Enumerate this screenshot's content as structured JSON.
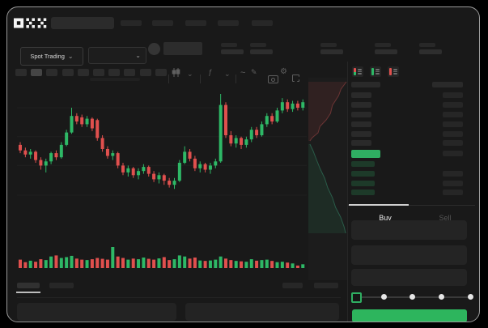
{
  "app": {
    "name": "OKX",
    "logo_label": "OKX"
  },
  "colors": {
    "background": "#000000",
    "surface": "#191919",
    "chart_bg": "#141414",
    "up_green": "#2eb866",
    "down_red": "#e0504e",
    "last_price_green": "#2fae62",
    "buy_button_green": "#2db55d",
    "placeholder": "#272727"
  },
  "icons": {
    "chevron_down": "⌄",
    "indicator_fx": "ƒ",
    "line_style_wave": "~",
    "draw_pencil": "✎",
    "settings_gear": "⚙"
  },
  "header": {
    "nav_placeholder_count": 5,
    "search_value": ""
  },
  "market_bar": {
    "pair_selector_label": "Spot Trading",
    "stat_group_count": 5
  },
  "chart_toolbar": {
    "timeframe_count": 10,
    "active_timeframe_index": 1
  },
  "chart_data": {
    "type": "candlestick+volume+depth",
    "title": "",
    "price_scale": [
      0,
      100
    ],
    "gridlines_price": [
      80,
      59,
      38,
      16.5
    ],
    "up_color": "#2eb866",
    "down_color": "#e0504e",
    "candles_ohlc": [
      [
        53,
        55,
        47,
        49
      ],
      [
        49,
        51,
        44,
        46
      ],
      [
        46,
        50,
        43,
        48
      ],
      [
        48,
        49,
        40,
        42
      ],
      [
        42,
        44,
        35,
        38
      ],
      [
        38,
        43,
        33,
        41
      ],
      [
        41,
        48,
        39,
        47
      ],
      [
        47,
        49,
        42,
        44
      ],
      [
        44,
        55,
        43,
        53
      ],
      [
        53,
        64,
        52,
        62
      ],
      [
        62,
        80,
        61,
        74
      ],
      [
        74,
        76,
        68,
        70
      ],
      [
        73,
        75,
        66,
        68
      ],
      [
        68,
        74,
        66,
        72
      ],
      [
        72,
        73,
        63,
        65
      ],
      [
        71,
        72,
        56,
        58
      ],
      [
        58,
        60,
        48,
        50
      ],
      [
        50,
        52,
        43,
        45
      ],
      [
        45,
        49,
        42,
        47
      ],
      [
        47,
        48,
        36,
        38
      ],
      [
        38,
        40,
        31,
        33
      ],
      [
        33,
        38,
        30,
        36
      ],
      [
        36,
        37,
        29,
        31
      ],
      [
        31,
        36,
        28,
        34
      ],
      [
        34,
        39,
        32,
        37
      ],
      [
        37,
        38,
        30,
        32
      ],
      [
        32,
        34,
        26,
        28
      ],
      [
        28,
        33,
        25,
        31
      ],
      [
        31,
        32,
        24,
        27
      ],
      [
        27,
        29,
        22,
        24
      ],
      [
        24,
        29,
        21,
        27
      ],
      [
        27,
        42,
        26,
        40
      ],
      [
        40,
        52,
        39,
        48
      ],
      [
        48,
        50,
        41,
        43
      ],
      [
        43,
        45,
        34,
        36
      ],
      [
        36,
        41,
        33,
        39
      ],
      [
        39,
        40,
        33,
        35
      ],
      [
        35,
        40,
        32,
        38
      ],
      [
        38,
        43,
        36,
        41
      ],
      [
        41,
        90,
        40,
        82
      ],
      [
        82,
        84,
        58,
        60
      ],
      [
        60,
        63,
        52,
        54
      ],
      [
        54,
        60,
        51,
        58
      ],
      [
        58,
        59,
        50,
        53
      ],
      [
        53,
        59,
        51,
        57
      ],
      [
        57,
        66,
        55,
        64
      ],
      [
        64,
        66,
        58,
        60
      ],
      [
        60,
        70,
        59,
        68
      ],
      [
        68,
        76,
        66,
        74
      ],
      [
        74,
        76,
        68,
        70
      ],
      [
        70,
        80,
        69,
        78
      ],
      [
        78,
        87,
        76,
        84
      ],
      [
        84,
        86,
        77,
        79
      ],
      [
        79,
        85,
        77,
        83
      ],
      [
        83,
        85,
        78,
        80
      ],
      [
        80,
        86,
        78,
        84
      ]
    ],
    "volumes": [
      40,
      28,
      35,
      30,
      42,
      38,
      55,
      60,
      48,
      52,
      58,
      45,
      40,
      38,
      42,
      48,
      44,
      40,
      100,
      55,
      48,
      40,
      45,
      42,
      50,
      44,
      40,
      46,
      52,
      38,
      42,
      60,
      55,
      45,
      50,
      36,
      34,
      36,
      40,
      55,
      45,
      38,
      34,
      32,
      30,
      42,
      35,
      38,
      40,
      34,
      28,
      30,
      26,
      22,
      12,
      18
    ],
    "depth": {
      "asks_profile": [
        [
          0.98,
          0.02
        ],
        [
          0.84,
          0.056
        ],
        [
          0.78,
          0.088
        ],
        [
          0.62,
          0.136
        ],
        [
          0.57,
          0.176
        ],
        [
          0.46,
          0.208
        ],
        [
          0.3,
          0.24
        ],
        [
          0.25,
          0.272
        ],
        [
          0.1,
          0.296
        ],
        [
          0.04,
          0.312
        ]
      ],
      "bids_profile": [
        [
          0.04,
          0.328
        ],
        [
          0.12,
          0.36
        ],
        [
          0.2,
          0.4
        ],
        [
          0.3,
          0.448
        ],
        [
          0.42,
          0.496
        ],
        [
          0.5,
          0.544
        ],
        [
          0.62,
          0.592
        ],
        [
          0.7,
          0.64
        ],
        [
          0.83,
          0.688
        ],
        [
          0.92,
          0.736
        ],
        [
          0.96,
          0.768
        ]
      ]
    }
  },
  "order_book": {
    "view_modes": [
      "combined-book",
      "bids-only",
      "asks-only"
    ],
    "ask_row_count": 6,
    "bid_row_count": 4,
    "last_price_highlighted": true
  },
  "trade_panel": {
    "tabs": {
      "buy": "Buy",
      "sell": "Sell",
      "active": "Buy"
    },
    "field_count": 3,
    "slider": {
      "stops": 5,
      "active_stop": 0
    },
    "submit_label": ""
  },
  "bottom_bar": {
    "tab_count": 2,
    "active_tab_index": 0,
    "right_item_count": 2,
    "panel_count": 2
  }
}
